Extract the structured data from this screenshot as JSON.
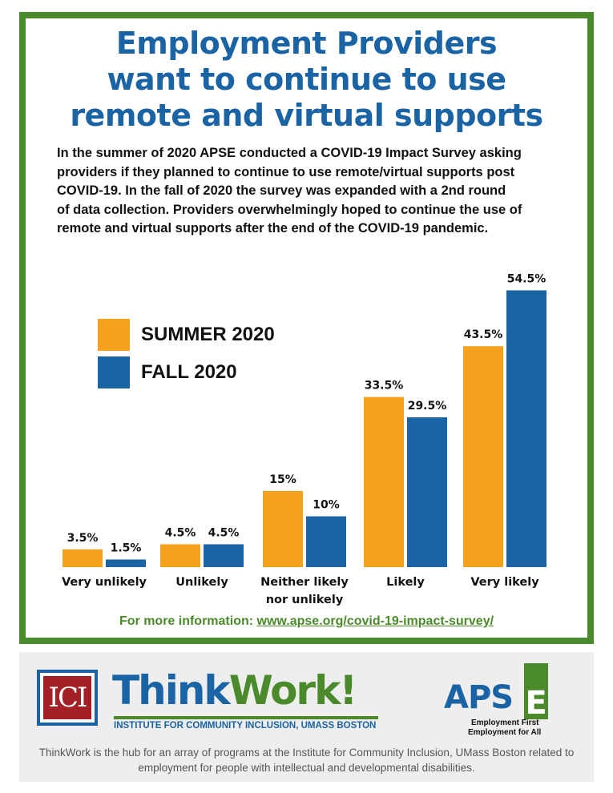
{
  "title_lines": [
    "Employment Providers",
    "want to continue to use",
    "remote and virtual supports"
  ],
  "intro_lines": [
    "In the summer of 2020 APSE conducted a COVID-19 Impact Survey asking",
    "providers if they planned to continue to use remote/virtual supports post",
    "COVID-19. In the fall of 2020 the survey was expanded with a 2nd round",
    "of data collection. Providers overwhelmingly hoped to continue the use of",
    "remote and virtual supports after the end of the COVID-19 pandemic."
  ],
  "legend": {
    "summer": "SUMMER 2020",
    "fall": "FALL 2020"
  },
  "colors": {
    "summer": "#f4a11d",
    "fall": "#1a63a4",
    "frame": "#4a8a2a",
    "title": "#1a63a4"
  },
  "chart_data": {
    "type": "bar",
    "categories": [
      [
        "Very unlikely"
      ],
      [
        "Unlikely"
      ],
      [
        "Neither likely",
        "nor unlikely"
      ],
      [
        "Likely"
      ],
      [
        "Very likely"
      ]
    ],
    "series": [
      {
        "name": "SUMMER 2020",
        "values": [
          3.5,
          4.5,
          15,
          33.5,
          43.5
        ],
        "labels": [
          "3.5%",
          "4.5%",
          "15%",
          "33.5%",
          "43.5%"
        ]
      },
      {
        "name": "FALL 2020",
        "values": [
          1.5,
          4.5,
          10,
          29.5,
          54.5
        ],
        "labels": [
          "1.5%",
          "4.5%",
          "10%",
          "29.5%",
          "54.5%"
        ]
      }
    ],
    "ylim": [
      0,
      60
    ],
    "grid": false,
    "legend_position": "top-left"
  },
  "more_info": {
    "prefix": "For more information: ",
    "link": "www.apse.org/covid-19-impact-survey/"
  },
  "footer": {
    "ici": "ICI",
    "thinkwork_blue": "Think",
    "thinkwork_green": "Work!",
    "thinkwork_sub": "INSTITUTE FOR COMMUNITY INCLUSION, UMASS BOSTON",
    "apse_word": "APS",
    "apse_letter": "E",
    "apse_tag1": "Employment First",
    "apse_tag2": "Employment for All",
    "description_lines": [
      "ThinkWork is the hub for an array of programs at the Institute for Community Inclusion, UMass Boston related to",
      "employment for people with intellectual and developmental disabilities."
    ]
  }
}
